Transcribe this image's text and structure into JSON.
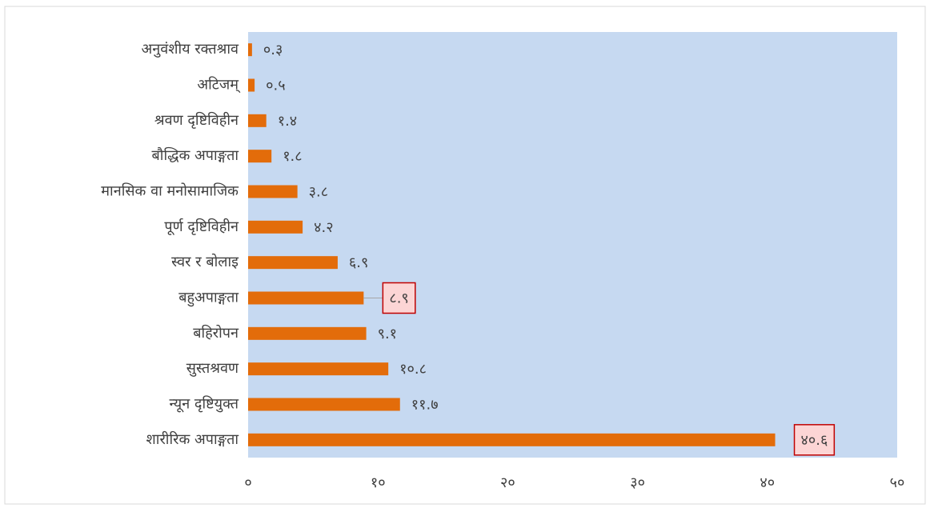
{
  "chart_data": {
    "type": "bar",
    "orientation": "horizontal",
    "categories": [
      "अनुवंशीय रक्तश्राव",
      "अटिजम्",
      "श्रवण दृष्टिविहीन",
      "बौद्धिक अपाङ्गता",
      "मानसिक वा मनोसामाजिक",
      "पूर्ण दृष्टिविहीन",
      "स्वर र बोलाइ",
      "बहुअपाङ्गता",
      "बहिरोपन",
      "सुस्तश्रवण",
      "न्यून दृष्टियुक्त",
      "शारीरिक अपाङ्गता"
    ],
    "values": [
      0.3,
      0.5,
      1.4,
      1.8,
      3.8,
      4.2,
      6.9,
      8.9,
      9.1,
      10.8,
      11.7,
      40.6
    ],
    "value_labels": [
      "०.३",
      "०.५",
      "१.४",
      "१.८",
      "३.८",
      "४.२",
      "६.९",
      "८.९",
      "९.१",
      "१०.८",
      "११.७",
      "४०.६"
    ],
    "color": "#e36c0a",
    "xlim": [
      0,
      50
    ],
    "xticks": [
      {
        "value": 0,
        "label": "०"
      },
      {
        "value": 10,
        "label": "१०"
      },
      {
        "value": 20,
        "label": "२०"
      },
      {
        "value": 30,
        "label": "३०"
      },
      {
        "value": 40,
        "label": "४०"
      },
      {
        "value": 50,
        "label": "५०"
      }
    ],
    "grid": false
  }
}
